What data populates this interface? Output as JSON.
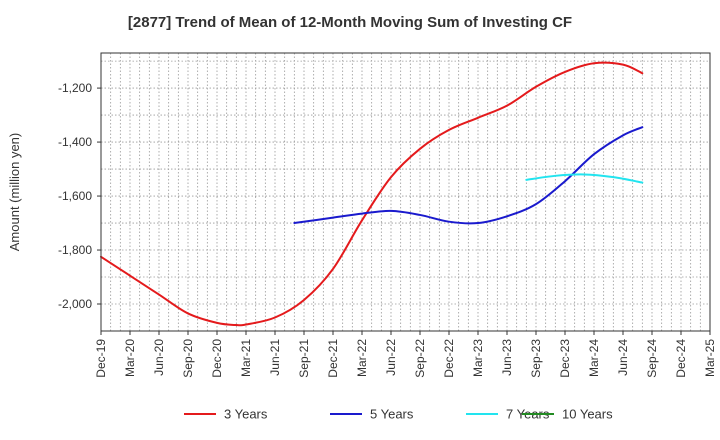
{
  "chart_data": {
    "type": "line",
    "title": "[2877]  Trend of Mean of 12-Month Moving Sum of Investing CF",
    "xlabel": "",
    "ylabel": "Amount (million yen)",
    "ylim": [
      -2100,
      -1070
    ],
    "yticks": [
      -1200,
      -1400,
      -1600,
      -1800,
      -2000
    ],
    "ytick_labels": [
      "-1,200",
      "-1,400",
      "-1,600",
      "-1,800",
      "-2,000"
    ],
    "x_unit": "month index from Dec-19",
    "xlim": [
      0,
      63
    ],
    "xticks": [
      0,
      3,
      6,
      9,
      12,
      15,
      18,
      21,
      24,
      27,
      30,
      33,
      36,
      39,
      42,
      45,
      48,
      51,
      54,
      57,
      60,
      63
    ],
    "xtick_labels": [
      "Dec-19",
      "Mar-20",
      "Jun-20",
      "Sep-20",
      "Dec-20",
      "Mar-21",
      "Jun-21",
      "Sep-21",
      "Dec-21",
      "Mar-22",
      "Jun-22",
      "Sep-22",
      "Dec-22",
      "Mar-23",
      "Jun-23",
      "Sep-23",
      "Dec-23",
      "Mar-24",
      "Jun-24",
      "Sep-24",
      "Dec-24",
      "Mar-25"
    ],
    "grid": true,
    "legend_position": "bottom",
    "series": [
      {
        "name": "3 Years",
        "color": "#e41a1c",
        "x": [
          0,
          3,
          6,
          9,
          12,
          14,
          15,
          18,
          21,
          24,
          27,
          30,
          33,
          36,
          39,
          42,
          45,
          48,
          51,
          54,
          56
        ],
        "values": [
          -1825,
          -1895,
          -1965,
          -2035,
          -2070,
          -2078,
          -2076,
          -2050,
          -1985,
          -1870,
          -1690,
          -1530,
          -1425,
          -1355,
          -1310,
          -1265,
          -1195,
          -1140,
          -1108,
          -1113,
          -1145
        ]
      },
      {
        "name": "5 Years",
        "color": "#1a1acd",
        "x": [
          20,
          24,
          27,
          30,
          33,
          36,
          39,
          42,
          45,
          48,
          51,
          54,
          56
        ],
        "values": [
          -1700,
          -1680,
          -1665,
          -1655,
          -1670,
          -1695,
          -1700,
          -1675,
          -1630,
          -1545,
          -1445,
          -1375,
          -1345
        ]
      },
      {
        "name": "7 Years",
        "color": "#22e4ef",
        "x": [
          44,
          47,
          50,
          53,
          56
        ],
        "values": [
          -1540,
          -1525,
          -1520,
          -1530,
          -1550
        ]
      },
      {
        "name": "10 Years",
        "color": "#228b22",
        "x": [],
        "values": []
      }
    ]
  }
}
